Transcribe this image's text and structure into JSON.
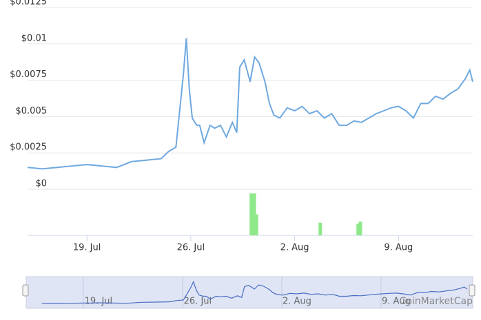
{
  "chart_data": [
    {
      "type": "line",
      "x": [
        15,
        16,
        17,
        18,
        19,
        20,
        21,
        22,
        23,
        24,
        24.5,
        25,
        25.3,
        25.5,
        25.7,
        25.9,
        26.1,
        26.4,
        26.6,
        26.9,
        27.3,
        27.6,
        28,
        28.4,
        28.8,
        29.1,
        29.3,
        29.6,
        30,
        30.3,
        30.6,
        31,
        31.3,
        31.6,
        32,
        32.5,
        33,
        33.5,
        34,
        34.5,
        35,
        35.5,
        36,
        36.5,
        37,
        37.5,
        38,
        38.5,
        39,
        39.5,
        40,
        40.5,
        41,
        41.5,
        42,
        42.5,
        43,
        43.5,
        44,
        44.5,
        44.8,
        45
      ],
      "values": [
        0.0015,
        0.0014,
        0.0015,
        0.0016,
        0.0017,
        0.0016,
        0.0015,
        0.0019,
        0.002,
        0.0021,
        0.0026,
        0.0029,
        0.0059,
        0.0079,
        0.0104,
        0.0069,
        0.0049,
        0.0044,
        0.0044,
        0.0032,
        0.0044,
        0.0042,
        0.0044,
        0.0036,
        0.0046,
        0.0039,
        0.0084,
        0.0089,
        0.0074,
        0.0091,
        0.0087,
        0.0074,
        0.0059,
        0.0051,
        0.0049,
        0.0056,
        0.0054,
        0.0057,
        0.0052,
        0.0054,
        0.0049,
        0.0052,
        0.0044,
        0.0044,
        0.0047,
        0.0046,
        0.0049,
        0.0052,
        0.0054,
        0.0056,
        0.0057,
        0.0054,
        0.0049,
        0.0059,
        0.0059,
        0.0064,
        0.0062,
        0.0066,
        0.0069,
        0.0076,
        0.0082,
        0.0074
      ],
      "color": "#6fa8e0",
      "xlim": [
        15,
        45
      ],
      "xticks": [
        {
          "value": 19,
          "label": "19. Jul"
        },
        {
          "value": 26,
          "label": "26. Jul"
        },
        {
          "value": 33,
          "label": "2. Aug"
        },
        {
          "value": 40,
          "label": "9. Aug"
        }
      ],
      "ylim": [
        0,
        0.0125
      ],
      "yticks": [
        {
          "value": 0,
          "label": "$0"
        },
        {
          "value": 0.0025,
          "label": "$0.0025"
        },
        {
          "value": 0.005,
          "label": "$0.005"
        },
        {
          "value": 0.0075,
          "label": "$0.0075"
        },
        {
          "value": 0.01,
          "label": "$0.01"
        },
        {
          "value": 0.0125,
          "label": "$0.0125"
        }
      ],
      "grid": true
    },
    {
      "type": "bar",
      "x": [
        30.1,
        30.3,
        30.45,
        34.75,
        37.3,
        37.45
      ],
      "values": [
        100,
        100,
        50,
        30,
        28,
        33
      ],
      "color": "#8fe88a",
      "xlim": [
        15,
        45
      ],
      "ylim": [
        0,
        110
      ]
    }
  ],
  "watermark": "CoinMarketCap"
}
